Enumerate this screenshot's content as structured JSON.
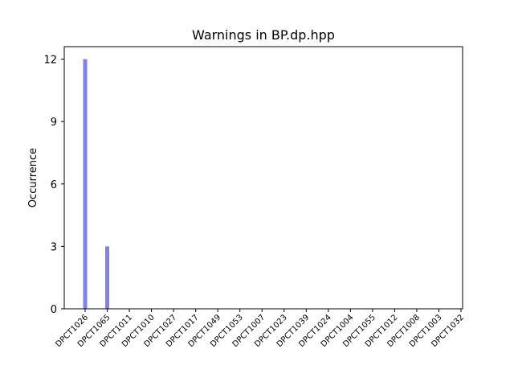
{
  "chart_data": {
    "type": "bar",
    "title": "Warnings in BP.dp.hpp",
    "xlabel": "",
    "ylabel": "Occurrence",
    "categories": [
      "DPCT1026",
      "DPCT1065",
      "DPCT1011",
      "DPCT1010",
      "DPCT1027",
      "DPCT1017",
      "DPCT1049",
      "DPCT1053",
      "DPCT1007",
      "DPCT1023",
      "DPCT1039",
      "DPCT1024",
      "DPCT1004",
      "DPCT1055",
      "DPCT1012",
      "DPCT1008",
      "DPCT1003",
      "DPCT1032"
    ],
    "values": [
      12,
      3,
      0,
      0,
      0,
      0,
      0,
      0,
      0,
      0,
      0,
      0,
      0,
      0,
      0,
      0,
      0,
      0
    ],
    "ylim": [
      0,
      12.6
    ],
    "yticks": [
      0,
      3,
      6,
      9,
      12
    ],
    "grid": false,
    "bar_color": "#8080ee"
  }
}
